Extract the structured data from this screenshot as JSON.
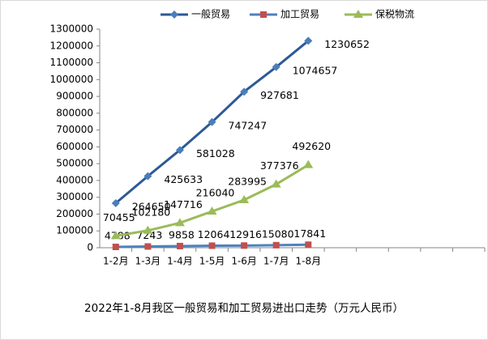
{
  "chart_data": {
    "type": "line",
    "title": "2022年1-8月我区一般贸易和加工贸易进出口走势（万元人民币）",
    "categories": [
      "1-2月",
      "1-3月",
      "1-4月",
      "1-5月",
      "1-6月",
      "1-7月",
      "1-8月",
      null,
      null,
      null,
      null,
      null
    ],
    "series": [
      {
        "name": "一般贸易",
        "color": "#2c5a96",
        "marker": "diamond",
        "marker_color": "#4a7ebb",
        "values": [
          264650,
          425633,
          581028,
          747247,
          927681,
          1074657,
          1230652,
          null,
          null,
          null,
          null,
          null
        ]
      },
      {
        "name": "加工贸易",
        "color": "#4f81bd",
        "marker": "square",
        "marker_color": "#c0504d",
        "values": [
          4788,
          7243,
          9858,
          12064,
          12916,
          15080,
          17841,
          null,
          null,
          null,
          null,
          null
        ]
      },
      {
        "name": "保税物流",
        "color": "#9bbb59",
        "marker": "triangle",
        "marker_color": "#9bbb59",
        "values": [
          70455,
          102180,
          147716,
          216040,
          283995,
          377376,
          492620,
          null,
          null,
          null,
          null,
          null
        ]
      }
    ],
    "ylim": [
      0,
      1300000
    ],
    "yticks": [
      0,
      100000,
      200000,
      300000,
      400000,
      500000,
      600000,
      700000,
      800000,
      900000,
      1000000,
      1100000,
      1200000,
      1300000
    ],
    "grid": false,
    "legend": "top"
  }
}
